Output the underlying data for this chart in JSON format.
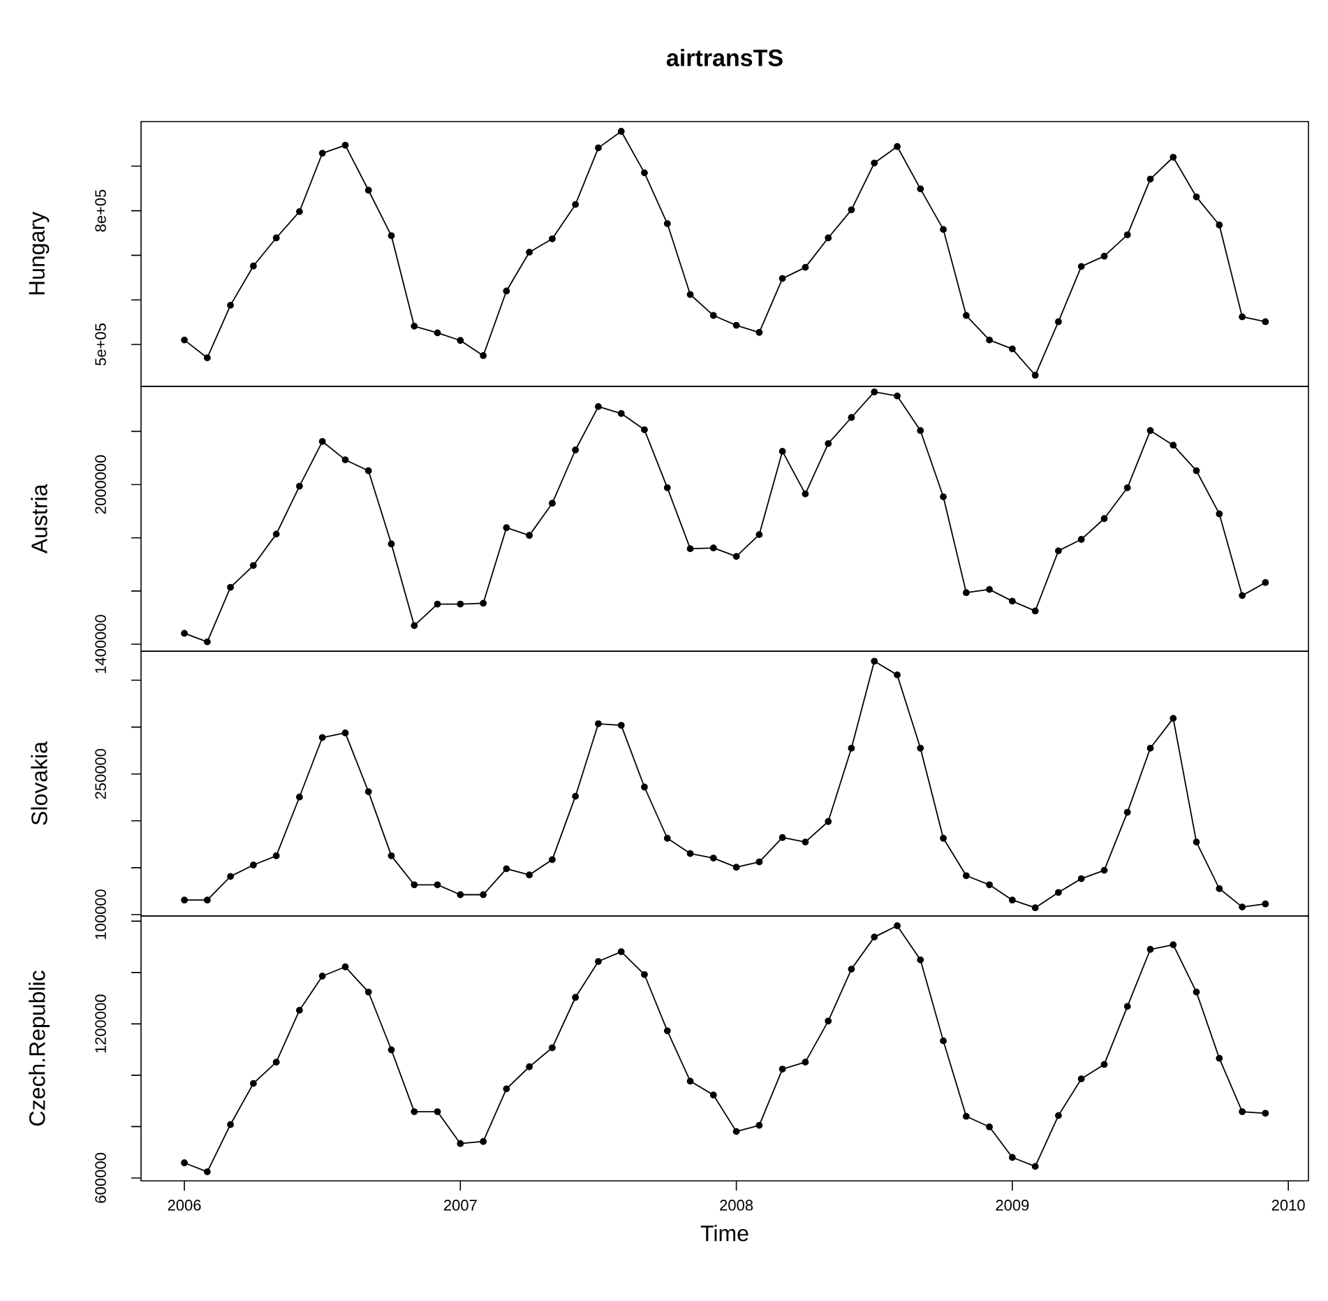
{
  "chart_data": [
    {
      "type": "line",
      "title": "airtransTS",
      "ylabel": "Hungary",
      "color": "#000000",
      "marker": "circle",
      "line_style": "solid",
      "grid": false,
      "tick_labels": "y",
      "x": [
        2006,
        2006.083,
        2006.167,
        2006.25,
        2006.333,
        2006.417,
        2006.5,
        2006.583,
        2006.667,
        2006.75,
        2006.833,
        2006.917,
        2007,
        2007.083,
        2007.167,
        2007.25,
        2007.333,
        2007.417,
        2007.5,
        2007.583,
        2007.667,
        2007.75,
        2007.833,
        2007.917,
        2008,
        2008.083,
        2008.167,
        2008.25,
        2008.333,
        2008.417,
        2008.5,
        2008.583,
        2008.667,
        2008.75,
        2008.833,
        2008.917,
        2009,
        2009.083,
        2009.167,
        2009.25,
        2009.333,
        2009.417,
        2009.5,
        2009.583,
        2009.667,
        2009.75,
        2009.833,
        2009.917
      ],
      "values": [
        510000,
        470000,
        588000,
        676000,
        739000,
        798000,
        929000,
        947000,
        846000,
        744000,
        541000,
        526000,
        509000,
        475000,
        620000,
        707000,
        737000,
        814000,
        941000,
        978000,
        885000,
        771000,
        612000,
        565000,
        543000,
        527000,
        648000,
        673000,
        739000,
        802000,
        907000,
        944000,
        849000,
        758000,
        565000,
        510000,
        490000,
        431000,
        551000,
        675000,
        698000,
        746000,
        871000,
        920000,
        831000,
        768000,
        562000,
        551000
      ],
      "xlim": [
        2005.843,
        2010.073
      ],
      "ylim": [
        406000,
        1000000
      ],
      "yticks": [
        {
          "value": 500000,
          "label": "5e+05"
        },
        {
          "value": 600000,
          "label": null
        },
        {
          "value": 700000,
          "label": null
        },
        {
          "value": 800000,
          "label": "8e+05"
        },
        {
          "value": 900000,
          "label": null
        }
      ]
    },
    {
      "type": "line",
      "ylabel": "Austria",
      "color": "#000000",
      "marker": "circle",
      "line_style": "solid",
      "grid": false,
      "tick_labels": "y",
      "x": [
        2006,
        2006.083,
        2006.167,
        2006.25,
        2006.333,
        2006.417,
        2006.5,
        2006.583,
        2006.667,
        2006.75,
        2006.833,
        2006.917,
        2007,
        2007.083,
        2007.167,
        2007.25,
        2007.333,
        2007.417,
        2007.5,
        2007.583,
        2007.667,
        2007.75,
        2007.833,
        2007.917,
        2008,
        2008.083,
        2008.167,
        2008.25,
        2008.333,
        2008.417,
        2008.5,
        2008.583,
        2008.667,
        2008.75,
        2008.833,
        2008.917,
        2009,
        2009.083,
        2009.167,
        2009.25,
        2009.333,
        2009.417,
        2009.5,
        2009.583,
        2009.667,
        2009.75,
        2009.833,
        2009.917
      ],
      "values": [
        1441000,
        1409000,
        1614000,
        1696000,
        1814000,
        1994000,
        2162000,
        2093000,
        2052000,
        1777000,
        1470000,
        1551000,
        1551000,
        1554000,
        1838000,
        1809000,
        1930000,
        2130000,
        2293000,
        2267000,
        2206000,
        1988000,
        1759000,
        1762000,
        1730000,
        1812000,
        2125000,
        1965000,
        2154000,
        2252000,
        2348000,
        2333000,
        2203000,
        1954000,
        1594000,
        1606000,
        1562000,
        1525000,
        1751000,
        1794000,
        1872000,
        1988000,
        2203000,
        2148000,
        2052000,
        1890000,
        1583000,
        1632000
      ],
      "xlim": [
        2005.843,
        2010.073
      ],
      "ylim": [
        1374000,
        2369000
      ],
      "yticks": [
        1400000,
        {
          "value": 1600000,
          "label": null
        },
        {
          "value": 1800000,
          "label": null
        },
        2000000,
        {
          "value": 2200000,
          "label": null
        }
      ]
    },
    {
      "type": "line",
      "ylabel": "Slovakia",
      "color": "#000000",
      "marker": "circle",
      "line_style": "solid",
      "grid": false,
      "tick_labels": "y",
      "x": [
        2006,
        2006.083,
        2006.167,
        2006.25,
        2006.333,
        2006.417,
        2006.5,
        2006.583,
        2006.667,
        2006.75,
        2006.833,
        2006.917,
        2007,
        2007.083,
        2007.167,
        2007.25,
        2007.333,
        2007.417,
        2007.5,
        2007.583,
        2007.667,
        2007.75,
        2007.833,
        2007.917,
        2008,
        2008.083,
        2008.167,
        2008.25,
        2008.333,
        2008.417,
        2008.5,
        2008.583,
        2008.667,
        2008.75,
        2008.833,
        2008.917,
        2009,
        2009.083,
        2009.167,
        2009.25,
        2009.333,
        2009.417,
        2009.5,
        2009.583,
        2009.667,
        2009.75,
        2009.833,
        2009.917
      ],
      "values": [
        115500,
        115500,
        140700,
        152900,
        162700,
        225400,
        288900,
        293800,
        231100,
        162700,
        131800,
        131800,
        121200,
        121200,
        148900,
        142300,
        158600,
        226200,
        303600,
        301900,
        236000,
        181400,
        165100,
        160300,
        150500,
        156200,
        182200,
        177400,
        199300,
        277500,
        370300,
        355700,
        277500,
        181400,
        141500,
        131800,
        115500,
        107300,
        123600,
        138300,
        147200,
        209100,
        277500,
        309300,
        177400,
        127700,
        108100,
        111400
      ],
      "xlim": [
        2005.843,
        2010.073
      ],
      "ylim": [
        98500,
        381000
      ],
      "yticks": [
        100000,
        {
          "value": 150000,
          "label": null
        },
        {
          "value": 200000,
          "label": null
        },
        250000,
        {
          "value": 300000,
          "label": null
        },
        {
          "value": 350000,
          "label": null
        }
      ]
    },
    {
      "type": "line",
      "ylabel": "Czech.Republic",
      "xlabel": "Time",
      "color": "#000000",
      "marker": "circle",
      "line_style": "solid",
      "grid": false,
      "x": [
        2006,
        2006.083,
        2006.167,
        2006.25,
        2006.333,
        2006.417,
        2006.5,
        2006.583,
        2006.667,
        2006.75,
        2006.833,
        2006.917,
        2007,
        2007.083,
        2007.167,
        2007.25,
        2007.333,
        2007.417,
        2007.5,
        2007.583,
        2007.667,
        2007.75,
        2007.833,
        2007.917,
        2008,
        2008.083,
        2008.167,
        2008.25,
        2008.333,
        2008.417,
        2008.5,
        2008.583,
        2008.667,
        2008.75,
        2008.833,
        2008.917,
        2009,
        2009.083,
        2009.167,
        2009.25,
        2009.333,
        2009.417,
        2009.5,
        2009.583,
        2009.667,
        2009.75,
        2009.833,
        2009.917
      ],
      "values": [
        659000,
        624000,
        808000,
        968000,
        1051000,
        1253000,
        1386000,
        1422000,
        1324000,
        1099000,
        858000,
        858000,
        734000,
        742000,
        947000,
        1033000,
        1107000,
        1303000,
        1443000,
        1481000,
        1392000,
        1173000,
        977000,
        923000,
        781000,
        805000,
        1024000,
        1051000,
        1211000,
        1413000,
        1538000,
        1582000,
        1449000,
        1134000,
        840000,
        799000,
        680000,
        645000,
        843000,
        986000,
        1042000,
        1268000,
        1490000,
        1508000,
        1324000,
        1066000,
        858000,
        852000
      ],
      "xlim": [
        2005.843,
        2010.073
      ],
      "ylim": [
        589000,
        1620000
      ],
      "xticks": [
        2006,
        2007,
        2008,
        2009,
        2010
      ],
      "yticks": [
        600000,
        {
          "value": 800000,
          "label": null
        },
        {
          "value": 1000000,
          "label": null
        },
        1200000,
        {
          "value": 1400000,
          "label": null
        },
        {
          "value": 1600000,
          "label": null
        }
      ]
    }
  ]
}
